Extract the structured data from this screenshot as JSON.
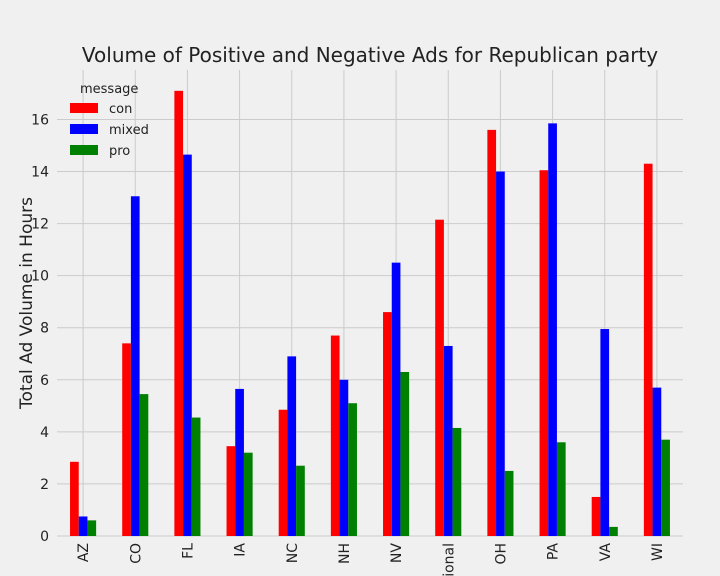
{
  "chart_data": {
    "type": "bar",
    "title": "Volume of Positive and Negative Ads for Republican party",
    "xlabel": "",
    "ylabel": "Total Ad Volume in Hours",
    "categories": [
      "AZ",
      "CO",
      "FL",
      "IA",
      "NC",
      "NH",
      "NV",
      "national",
      "OH",
      "PA",
      "VA",
      "WI"
    ],
    "legend_title": "message",
    "legend_position": "top-left",
    "grid": true,
    "ylim": [
      0,
      17.9
    ],
    "yticks": [
      0,
      2,
      4,
      6,
      8,
      10,
      12,
      14,
      16
    ],
    "series": [
      {
        "name": "con",
        "color": "#ff0000",
        "values": [
          2.85,
          7.4,
          17.1,
          3.45,
          4.85,
          7.7,
          8.6,
          12.15,
          15.6,
          14.05,
          1.5,
          14.3
        ]
      },
      {
        "name": "mixed",
        "color": "#0000ff",
        "values": [
          0.75,
          13.05,
          14.65,
          5.65,
          6.9,
          6.0,
          10.5,
          7.3,
          14.0,
          15.85,
          7.95,
          5.7
        ]
      },
      {
        "name": "pro",
        "color": "#008000",
        "values": [
          0.6,
          5.45,
          4.55,
          3.2,
          2.7,
          5.1,
          6.3,
          4.15,
          2.5,
          3.6,
          0.35,
          3.7
        ]
      }
    ]
  }
}
